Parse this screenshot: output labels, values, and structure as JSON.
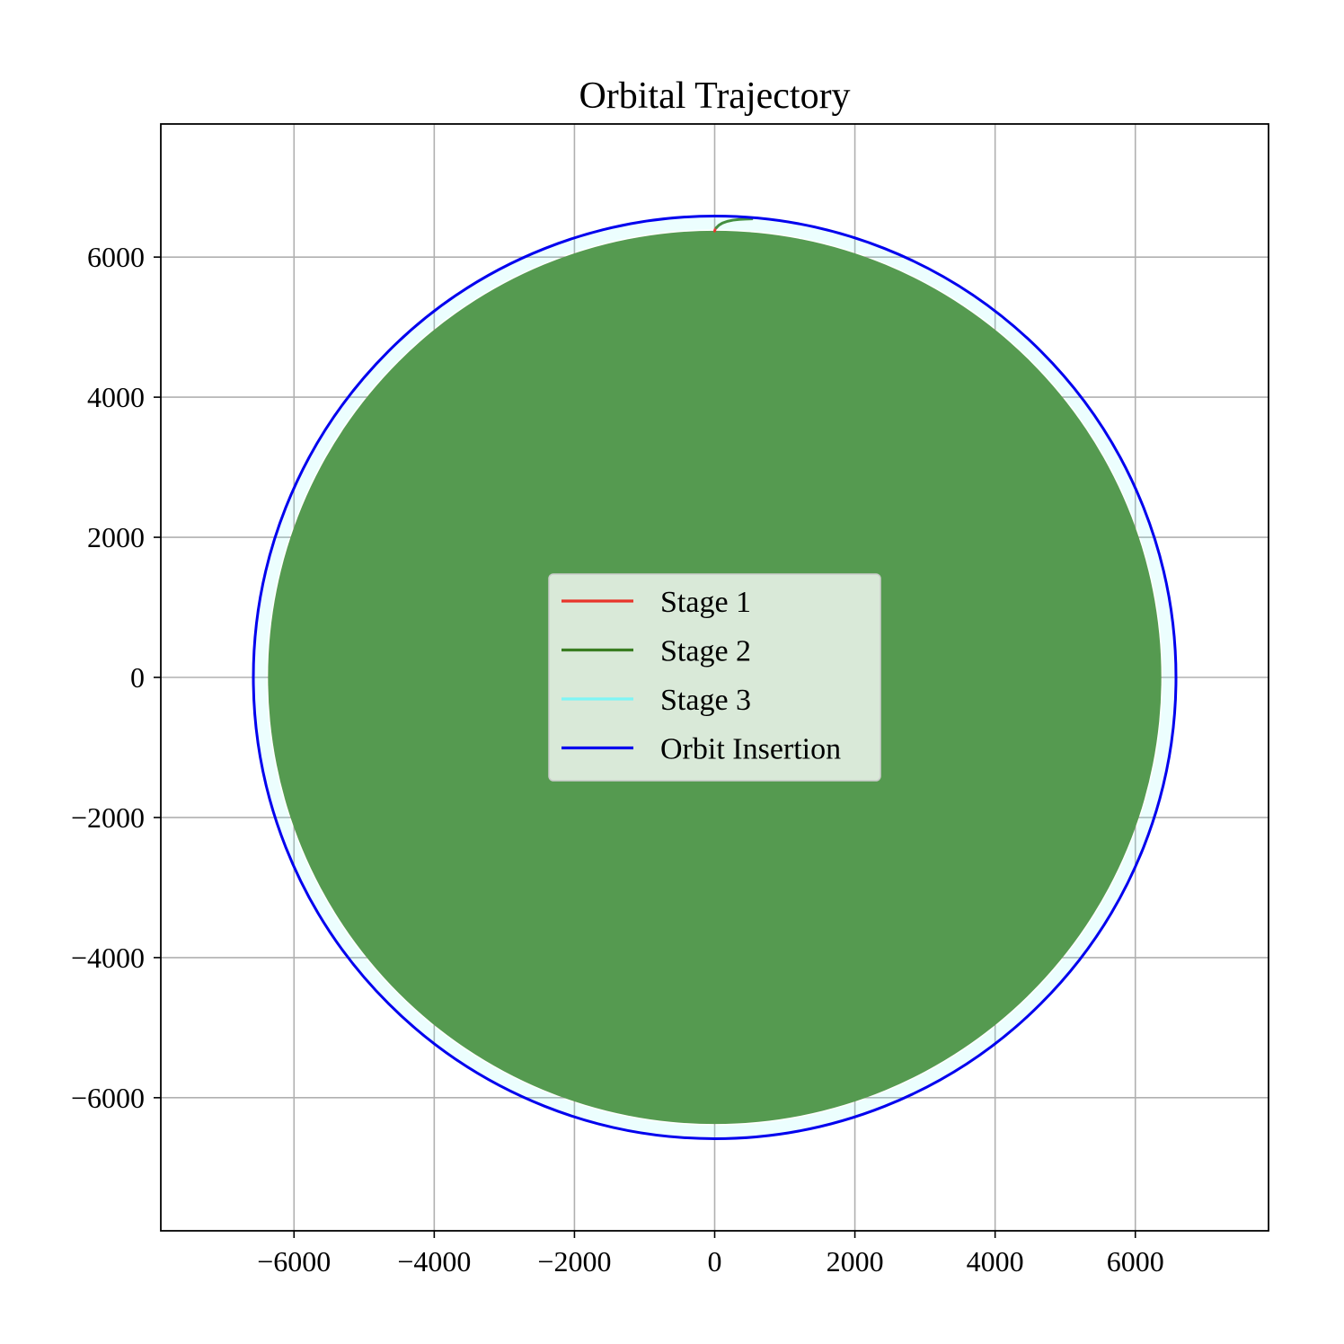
{
  "chart_data": {
    "type": "line",
    "title": "Orbital Trajectory",
    "xlabel": "",
    "ylabel": "",
    "xlim": [
      -7900,
      7900
    ],
    "ylim": [
      -7900,
      7900
    ],
    "aspect": "equal",
    "grid": true,
    "x_ticks": [
      -6000,
      -4000,
      -2000,
      0,
      2000,
      4000,
      6000
    ],
    "y_ticks": [
      -6000,
      -4000,
      -2000,
      0,
      2000,
      4000,
      6000
    ],
    "x_tick_labels": [
      "−6000",
      "−4000",
      "−2000",
      "0",
      "2000",
      "4000",
      "6000"
    ],
    "y_tick_labels": [
      "−6000",
      "−4000",
      "−2000",
      "0",
      "2000",
      "4000",
      "6000"
    ],
    "earth": {
      "radius": 6371,
      "color": "#559a50"
    },
    "legend_position": "center",
    "series": [
      {
        "name": "Stage 1",
        "color": "#e8352a",
        "x": [
          0,
          3,
          8,
          15,
          25
        ],
        "y": [
          6371,
          6385,
          6398,
          6410,
          6420
        ]
      },
      {
        "name": "Stage 2",
        "color": "#3a7d22",
        "x": [
          25,
          60,
          110,
          180,
          260,
          350,
          440,
          530
        ],
        "y": [
          6420,
          6455,
          6485,
          6510,
          6527,
          6537,
          6542,
          6545
        ]
      },
      {
        "name": "Stage 3",
        "color": "#7ff5f5",
        "circle_radius": 6480,
        "alpha": 0.15
      },
      {
        "name": "Orbit Insertion",
        "color": "#0000ee",
        "circle_radius": 6580
      }
    ]
  }
}
